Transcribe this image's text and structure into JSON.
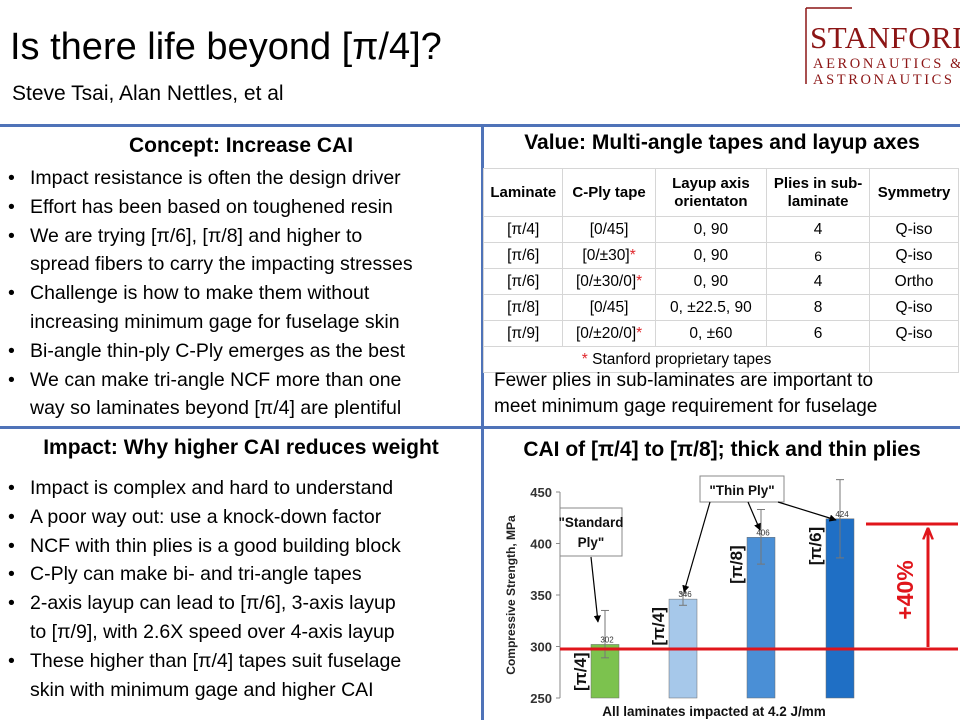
{
  "header": {
    "title": "Is there life beyond [π/4]?",
    "authors": "Steve Tsai, Alan Nettles, et al",
    "logo": {
      "name": "STANFORD",
      "line1": "AERONAUTICS &",
      "line2": "ASTRONAUTICS",
      "color": "#8c1515"
    }
  },
  "concept": {
    "heading": "Concept: Increase CAI",
    "bullets": [
      "Impact resistance is often the design driver",
      "Effort has been based on toughened resin",
      "We are trying [π/6], [π/8] and higher to",
      "spread fibers to carry the impacting stresses",
      "Challenge is how to make them without",
      "increasing minimum gage for fuselage skin",
      "Bi-angle thin-ply C-Ply emerges as the best",
      "We can make tri-angle NCF more than one",
      "way so laminates beyond [π/4] are plentiful"
    ]
  },
  "value": {
    "heading": "Value: Multi-angle tapes and layup axes",
    "columns": [
      "Laminate",
      "C-Ply tape",
      "Layup axis orientaton",
      "Plies in sub-laminate",
      "Symmetry"
    ],
    "rows": [
      {
        "laminate": "[π/4]",
        "tape": "[0/45]",
        "star": "",
        "axis": "0, 90",
        "plies": "4",
        "symmetry": "Q-iso"
      },
      {
        "laminate": "[π/6]",
        "tape": "[0/±30]",
        "star": "*",
        "axis": "0, 90",
        "plies": "6",
        "symmetry": "Q-iso"
      },
      {
        "laminate": "[π/6]",
        "tape": "[0/±30/0]",
        "star": "*",
        "axis": "0, 90",
        "plies": "4",
        "symmetry": "Ortho"
      },
      {
        "laminate": "[π/8]",
        "tape": "[0/45]",
        "star": "",
        "axis": "0, ±22.5, 90",
        "plies": "8",
        "symmetry": "Q-iso"
      },
      {
        "laminate": "[π/9]",
        "tape": "[0/±20/0]",
        "star": "*",
        "axis": "0, ±60",
        "plies": "6",
        "symmetry": "Q-iso"
      }
    ],
    "footnote_star": "*",
    "footnote": " Stanford proprietary tapes",
    "note_line1": "Fewer plies in sub-laminates are important to",
    "note_line2": "meet minimum gage requirement for fuselage"
  },
  "impact": {
    "heading": "Impact: Why higher CAI reduces weight",
    "bullets": [
      "Impact is complex and hard to understand",
      "A poor way out: use a knock-down factor",
      "NCF with thin plies is a good building block",
      "C-Ply can make bi- and tri-angle tapes",
      "2-axis layup can lead to [π/6], 3-axis layup",
      "to [π/9], with 2.6X speed over 4-axis layup",
      "These higher than [π/4] tapes suit fuselage",
      "skin with minimum gage and higher CAI"
    ]
  },
  "cai": {
    "heading": "CAI of [π/4] to [π/8]; thick and thin plies"
  },
  "chart_data": {
    "type": "bar",
    "title": "",
    "xlabel": "All laminates impacted at 4.2 J/mm",
    "ylabel": "Compressive Strength, MPa",
    "ylim": [
      250,
      450
    ],
    "yticks": [
      "250",
      "300",
      "350",
      "400",
      "450"
    ],
    "categories": [
      "[π/4]",
      "[π/4]",
      "[π/8]",
      "[π/6]"
    ],
    "values": [
      302,
      346,
      406,
      424
    ],
    "value_labels": [
      "302",
      "346",
      "406",
      "424"
    ],
    "error_high": [
      335,
      352,
      433,
      462
    ],
    "error_low": [
      289,
      340,
      380,
      386
    ],
    "bar_colors": [
      "#7cc24e",
      "#a6c8ea",
      "#4a8fd6",
      "#1f6fc5"
    ],
    "annotations": {
      "standard_ply": [
        "\"Standard",
        "Ply\""
      ],
      "thin_ply": "\"Thin Ply\"",
      "gain": "+40%",
      "gain_color": "#e0151b"
    }
  }
}
